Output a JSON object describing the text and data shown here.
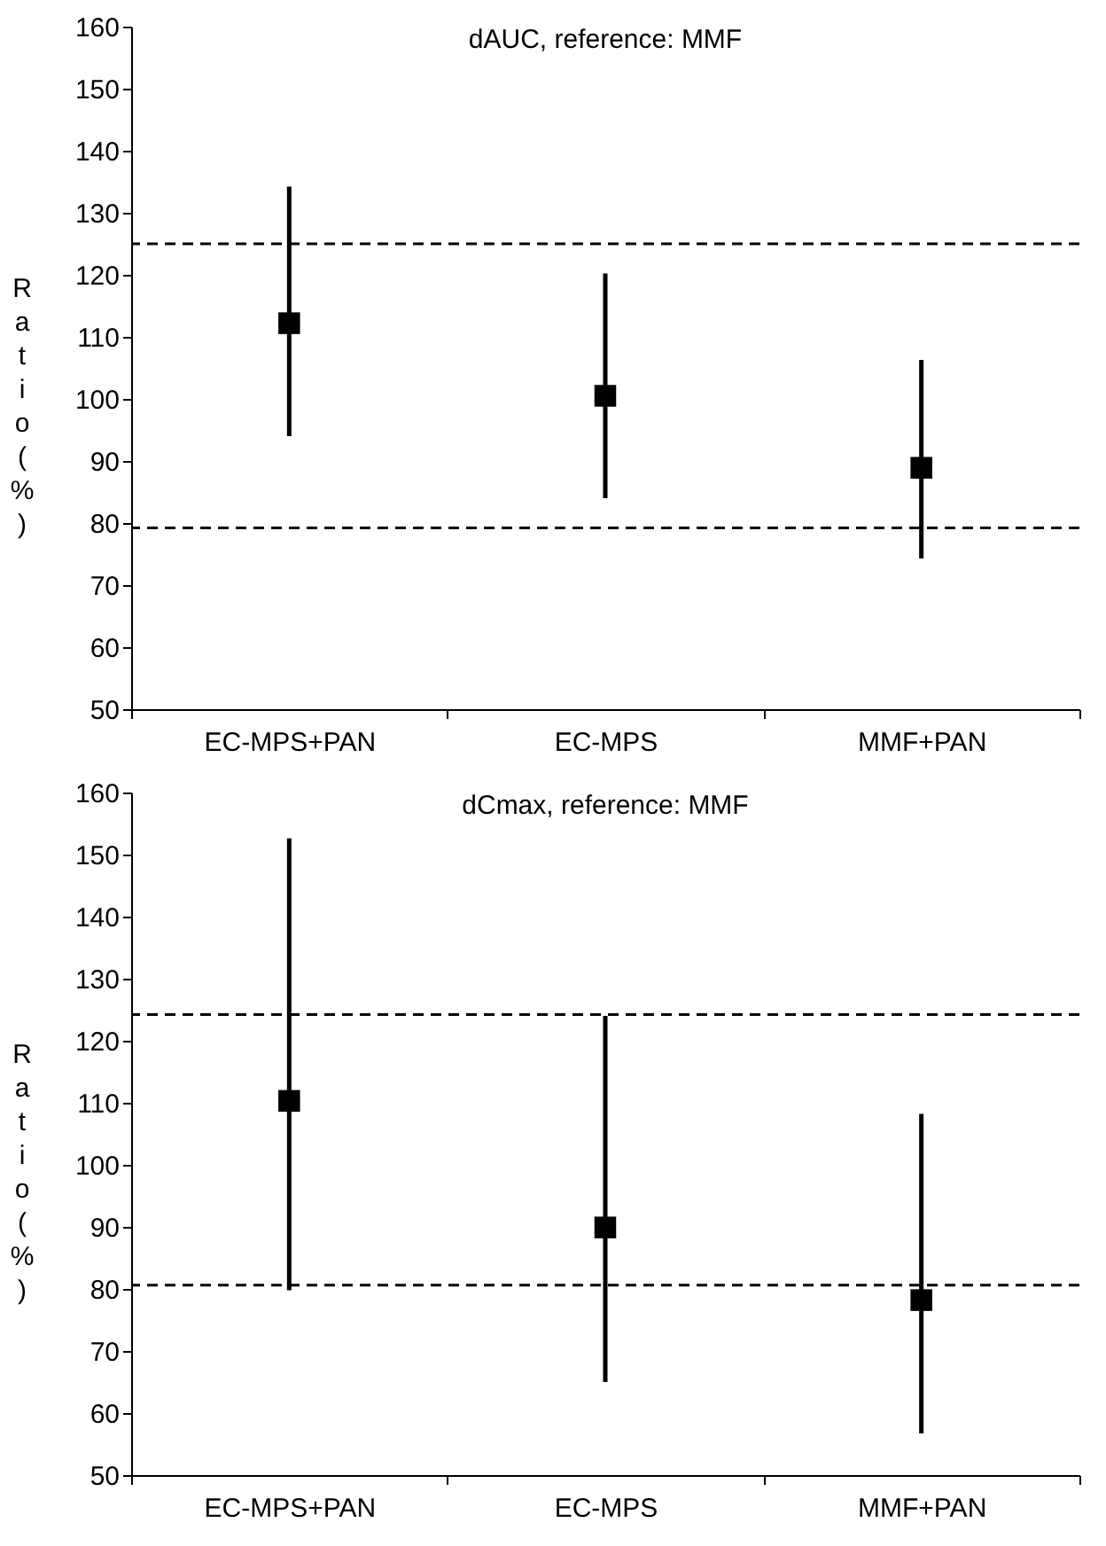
{
  "chart_data": [
    {
      "type": "scatter",
      "title": "dAUC, reference: MMF",
      "ylabel": "Ratio (%)",
      "categories": [
        "EC-MPS+PAN",
        "EC-MPS",
        "MMF+PAN"
      ],
      "series": [
        {
          "color": "#000000",
          "values": [
            112.2,
            100.5,
            88.9
          ],
          "errors": [
            [
              94,
              134.2
            ],
            [
              84,
              120.2
            ],
            [
              74.3,
              106.3
            ]
          ]
        }
      ],
      "ylim": [
        50,
        160
      ],
      "yticks": [
        50,
        60,
        70,
        80,
        90,
        100,
        110,
        120,
        130,
        140,
        150,
        160
      ],
      "marker": "square",
      "grid": false,
      "ref_lines": [
        {
          "axis": "y",
          "value": 125,
          "color": "#000000",
          "line_style": "dashed"
        },
        {
          "axis": "y",
          "value": 79.2,
          "color": "#000000",
          "line_style": "dashed"
        }
      ]
    },
    {
      "type": "scatter",
      "title": "dCmax, reference: MMF",
      "ylabel": "Ratio (%)",
      "categories": [
        "EC-MPS+PAN",
        "EC-MPS",
        "MMF+PAN"
      ],
      "series": [
        {
          "color": "#000000",
          "values": [
            110.3,
            89.9,
            78.2
          ],
          "errors": [
            [
              79.8,
              152.6
            ],
            [
              65,
              124
            ],
            [
              56.7,
              108.2
            ]
          ]
        }
      ],
      "ylim": [
        50,
        160
      ],
      "yticks": [
        50,
        60,
        70,
        80,
        90,
        100,
        110,
        120,
        130,
        140,
        150,
        160
      ],
      "marker": "square",
      "grid": false,
      "ref_lines": [
        {
          "axis": "y",
          "value": 124.2,
          "color": "#000000",
          "line_style": "dashed"
        },
        {
          "axis": "y",
          "value": 80.6,
          "color": "#000000",
          "line_style": "dashed"
        }
      ]
    }
  ]
}
